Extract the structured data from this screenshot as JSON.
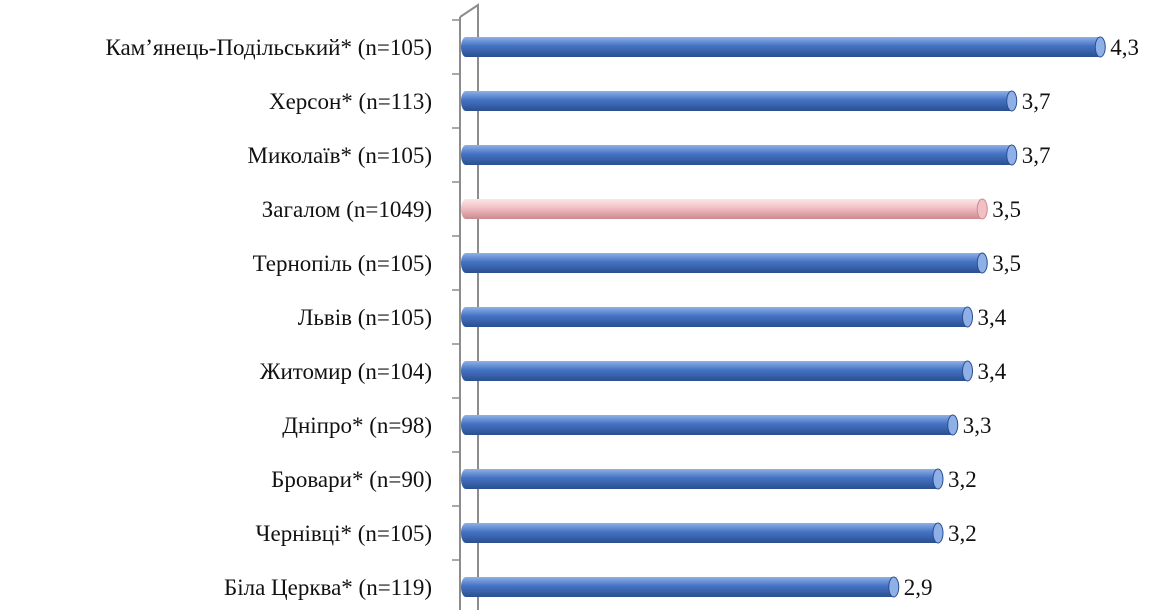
{
  "chart_data": {
    "type": "bar",
    "orientation": "horizontal",
    "title": "",
    "xlabel": "",
    "ylabel": "",
    "grid": false,
    "legend": "none",
    "xlim": [
      0,
      4.5
    ],
    "categories": [
      "Кам’янець-Подільський* (n=105)",
      "Херсон* (n=113)",
      "Миколаїв* (n=105)",
      "Загалом (n=1049)",
      "Тернопіль (n=105)",
      "Львів  (n=105)",
      "Житомир (n=104)",
      "Дніпро* (n=98)",
      "Бровари* (n=90)",
      "Чернівці* (n=105)",
      "Біла Церква* (n=119)"
    ],
    "values": [
      4.3,
      3.7,
      3.7,
      3.5,
      3.5,
      3.4,
      3.4,
      3.3,
      3.2,
      3.2,
      2.9
    ],
    "value_labels": [
      "4,3",
      "3,7",
      "3,7",
      "3,5",
      "3,5",
      "3,4",
      "3,4",
      "3,3",
      "3,2",
      "3,2",
      "2,9"
    ],
    "highlight_category": "Загалом (n=1049)",
    "colors": {
      "bar": "#4472C4",
      "bar_dark": "#2a4f8f",
      "bar_light": "#8fb0e6",
      "highlight": "#F2BFC4",
      "highlight_dark": "#c98a90",
      "highlight_light": "#fde6e8",
      "axis": "#8c8c8c"
    }
  }
}
